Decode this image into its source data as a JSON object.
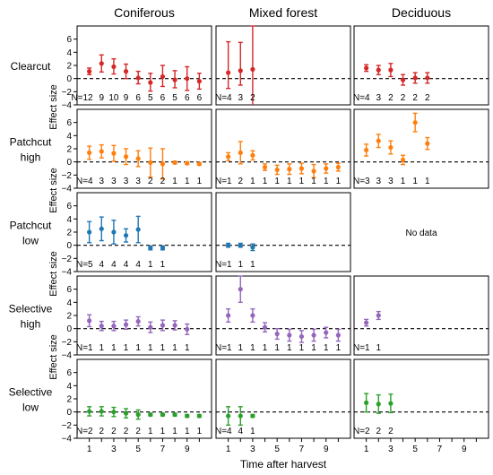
{
  "figure": {
    "columns": [
      "Coniferous",
      "Mixed forest",
      "Deciduous"
    ],
    "rows": [
      {
        "label": [
          "Clearcut"
        ]
      },
      {
        "label": [
          "Patchcut",
          "high"
        ]
      },
      {
        "label": [
          "Patchcut",
          "low"
        ]
      },
      {
        "label": [
          "Selective",
          "high"
        ]
      },
      {
        "label": [
          "Selective",
          "low"
        ]
      }
    ],
    "ylabel": "Effect size",
    "xlabel": "Time after harvest",
    "no_data_label": "No data",
    "n_prefix": "N=",
    "yticks": [
      -4,
      -2,
      0,
      2,
      4,
      6
    ],
    "xticks": [
      1,
      3,
      5,
      7,
      9
    ]
  },
  "chart_data": {
    "type": "scatter",
    "errorbars": true,
    "reference_line": {
      "y": 0,
      "style": "dashed"
    },
    "ylim": [
      -4,
      8
    ],
    "xlim": [
      0,
      11
    ],
    "panels": [
      {
        "row": "Clearcut",
        "column": "Coniferous",
        "color": "#d62728",
        "x": [
          1,
          2,
          3,
          4,
          5,
          6,
          7,
          8,
          9,
          10
        ],
        "y": [
          1.1,
          2.3,
          1.8,
          1.1,
          0.1,
          -0.6,
          0.3,
          -0.2,
          0.0,
          -0.4
        ],
        "lo": [
          0.6,
          1.0,
          0.7,
          0.0,
          -0.8,
          -1.9,
          -1.2,
          -1.4,
          -1.8,
          -1.6
        ],
        "hi": [
          1.6,
          3.6,
          3.0,
          2.2,
          1.1,
          0.8,
          2.0,
          1.2,
          1.8,
          0.8
        ],
        "n": [
          "12",
          "9",
          "10",
          "9",
          "6",
          "5",
          "6",
          "5",
          "6",
          "6"
        ]
      },
      {
        "row": "Clearcut",
        "column": "Mixed forest",
        "color": "#d62728",
        "x": [
          1,
          2,
          3
        ],
        "y": [
          0.9,
          1.2,
          1.4
        ],
        "lo": [
          -1.5,
          -1.0,
          -4.6
        ],
        "hi": [
          5.6,
          5.5,
          8.0
        ],
        "n": [
          "4",
          "3",
          "2"
        ]
      },
      {
        "row": "Clearcut",
        "column": "Deciduous",
        "color": "#d62728",
        "x": [
          1,
          2,
          3,
          4,
          5,
          6
        ],
        "y": [
          1.6,
          1.3,
          1.3,
          -0.2,
          0.1,
          0.1
        ],
        "lo": [
          1.1,
          0.6,
          0.3,
          -1.0,
          -0.7,
          -0.7
        ],
        "hi": [
          2.1,
          2.0,
          2.3,
          0.6,
          0.9,
          0.9
        ],
        "n": [
          "4",
          "3",
          "2",
          "2",
          "2",
          "2"
        ]
      },
      {
        "row": "Patchcut high",
        "column": "Coniferous",
        "color": "#ff7f0e",
        "x": [
          1,
          2,
          3,
          4,
          5,
          6,
          7,
          8,
          9,
          10
        ],
        "y": [
          1.4,
          1.6,
          1.3,
          0.8,
          0.5,
          -0.1,
          -0.3,
          -0.1,
          -0.2,
          -0.3
        ],
        "lo": [
          0.4,
          0.6,
          0.1,
          -0.4,
          -0.7,
          -2.3,
          -2.6,
          -0.3,
          -0.4,
          -0.5
        ],
        "hi": [
          2.4,
          2.6,
          2.5,
          2.0,
          1.7,
          2.1,
          2.0,
          0.1,
          0.0,
          -0.1
        ],
        "n": [
          "4",
          "3",
          "3",
          "3",
          "3",
          "2",
          "2",
          "1",
          "1",
          "1"
        ]
      },
      {
        "row": "Patchcut high",
        "column": "Mixed forest",
        "color": "#ff7f0e",
        "x": [
          1,
          2,
          3,
          4,
          5,
          6,
          7,
          8,
          9,
          10
        ],
        "y": [
          0.8,
          1.4,
          1.0,
          -0.8,
          -1.2,
          -1.1,
          -1.0,
          -1.4,
          -1.0,
          -0.8
        ],
        "lo": [
          0.2,
          -0.3,
          0.3,
          -1.3,
          -1.9,
          -1.9,
          -1.8,
          -2.4,
          -1.7,
          -1.4
        ],
        "hi": [
          1.4,
          3.1,
          1.7,
          -0.3,
          -0.5,
          -0.3,
          -0.2,
          -0.4,
          -0.3,
          -0.2
        ],
        "n": [
          "1",
          "2",
          "1",
          "1",
          "1",
          "1",
          "1",
          "1",
          "1",
          "1"
        ]
      },
      {
        "row": "Patchcut high",
        "column": "Deciduous",
        "color": "#ff7f0e",
        "x": [
          1,
          2,
          3,
          4,
          5,
          6
        ],
        "y": [
          1.8,
          3.2,
          2.2,
          0.3,
          6.0,
          2.8
        ],
        "lo": [
          0.9,
          2.2,
          1.2,
          -0.4,
          4.6,
          1.9
        ],
        "hi": [
          2.7,
          4.2,
          3.2,
          1.0,
          7.4,
          3.7
        ],
        "n": [
          "3",
          "3",
          "3",
          "1",
          "1",
          "1"
        ]
      },
      {
        "row": "Patchcut low",
        "column": "Coniferous",
        "color": "#1f77b4",
        "x": [
          1,
          2,
          3,
          4,
          5,
          6,
          7
        ],
        "y": [
          2.0,
          2.5,
          2.0,
          1.5,
          2.4,
          -0.4,
          -0.4
        ],
        "lo": [
          0.4,
          0.7,
          0.2,
          0.5,
          0.4,
          -0.7,
          -0.7
        ],
        "hi": [
          3.6,
          4.3,
          3.8,
          2.5,
          4.4,
          -0.1,
          -0.1
        ],
        "n": [
          "5",
          "4",
          "4",
          "4",
          "4",
          "1",
          "1"
        ]
      },
      {
        "row": "Patchcut low",
        "column": "Mixed forest",
        "color": "#1f77b4",
        "x": [
          1,
          2,
          3
        ],
        "y": [
          0.0,
          0.0,
          -0.3
        ],
        "lo": [
          -0.3,
          -0.3,
          -0.8
        ],
        "hi": [
          0.3,
          0.3,
          0.2
        ],
        "n": [
          "1",
          "1",
          "1"
        ]
      },
      {
        "row": "Patchcut low",
        "column": "Deciduous",
        "no_data": true
      },
      {
        "row": "Selective high",
        "column": "Coniferous",
        "color": "#9467bd",
        "x": [
          1,
          2,
          3,
          4,
          5,
          6,
          7,
          8,
          9
        ],
        "y": [
          1.2,
          0.4,
          0.4,
          0.6,
          1.1,
          0.2,
          0.5,
          0.5,
          -0.1
        ],
        "lo": [
          0.3,
          -0.3,
          -0.3,
          -0.1,
          0.4,
          -0.6,
          -0.3,
          -0.2,
          -0.9
        ],
        "hi": [
          2.1,
          1.1,
          1.1,
          1.3,
          1.8,
          1.0,
          1.3,
          1.2,
          0.7
        ],
        "n": [
          "1",
          "1",
          "1",
          "1",
          "1",
          "1",
          "1",
          "1",
          "1"
        ]
      },
      {
        "row": "Selective high",
        "column": "Mixed forest",
        "color": "#9467bd",
        "x": [
          1,
          2,
          3,
          4,
          5,
          6,
          7,
          8,
          9,
          10
        ],
        "y": [
          2.0,
          6.0,
          2.0,
          0.2,
          -0.8,
          -1.0,
          -1.2,
          -1.0,
          -0.6,
          -1.0
        ],
        "lo": [
          1.0,
          4.0,
          1.0,
          -0.5,
          -1.6,
          -1.9,
          -2.1,
          -1.9,
          -1.4,
          -1.9
        ],
        "hi": [
          3.0,
          8.0,
          3.0,
          0.9,
          0.0,
          -0.1,
          -0.3,
          -0.1,
          0.2,
          -0.1
        ],
        "n": [
          "1",
          "1",
          "1",
          "1",
          "1",
          "1",
          "1",
          "1",
          "1",
          "1"
        ]
      },
      {
        "row": "Selective high",
        "column": "Deciduous",
        "color": "#9467bd",
        "x": [
          1,
          2
        ],
        "y": [
          0.9,
          2.0
        ],
        "lo": [
          0.4,
          1.4
        ],
        "hi": [
          1.4,
          2.6
        ],
        "n": [
          "1",
          "1"
        ]
      },
      {
        "row": "Selective low",
        "column": "Coniferous",
        "color": "#2ca02c",
        "x": [
          1,
          2,
          3,
          4,
          5,
          6,
          7,
          8,
          9,
          10
        ],
        "y": [
          0.1,
          0.1,
          0.0,
          -0.2,
          -0.4,
          -0.4,
          -0.4,
          -0.4,
          -0.6,
          -0.6
        ],
        "lo": [
          -0.6,
          -0.6,
          -0.7,
          -0.9,
          -1.1,
          -0.6,
          -0.6,
          -0.6,
          -0.8,
          -0.8
        ],
        "hi": [
          0.8,
          0.8,
          0.7,
          0.5,
          0.3,
          -0.2,
          -0.2,
          -0.2,
          -0.4,
          -0.4
        ],
        "n": [
          "2",
          "2",
          "2",
          "2",
          "2",
          "1",
          "1",
          "1",
          "1",
          "1"
        ]
      },
      {
        "row": "Selective low",
        "column": "Mixed forest",
        "color": "#2ca02c",
        "x": [
          1,
          2,
          3
        ],
        "y": [
          -0.6,
          -0.6,
          -0.6
        ],
        "lo": [
          -2.0,
          -2.0,
          -0.8
        ],
        "hi": [
          0.8,
          0.8,
          -0.4
        ],
        "n": [
          "4",
          "4",
          "1"
        ]
      },
      {
        "row": "Selective low",
        "column": "Deciduous",
        "color": "#2ca02c",
        "x": [
          1,
          2,
          3
        ],
        "y": [
          1.4,
          1.2,
          1.3
        ],
        "lo": [
          0.0,
          -0.2,
          -0.1
        ],
        "hi": [
          2.8,
          2.6,
          2.7
        ],
        "n": [
          "2",
          "2",
          "2"
        ]
      }
    ]
  }
}
